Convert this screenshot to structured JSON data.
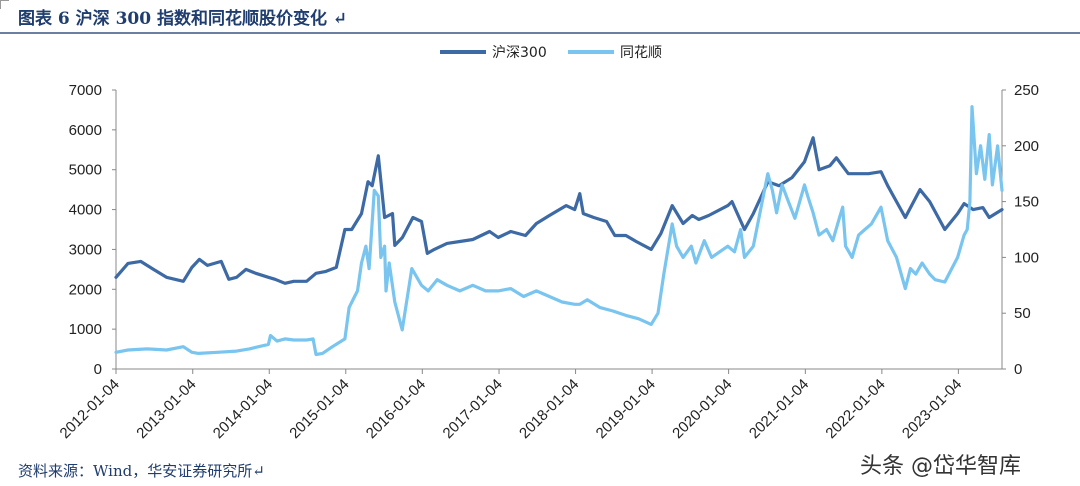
{
  "header": {
    "title": "图表 6 沪深 300 指数和同花顺股价变化 ↵"
  },
  "footer": {
    "source": "资料来源：Wind，华安证券研究所↵",
    "watermark": "头条 @岱华智库"
  },
  "chart_data": {
    "type": "line",
    "title": "图表 6 沪深 300 指数和同花顺股价变化",
    "legend_position": "top-center",
    "grid": false,
    "x_start": "2012-01-04",
    "x_end": "2023-07-31",
    "x_ticks": [
      "2012-01-04",
      "2013-01-04",
      "2014-01-04",
      "2015-01-04",
      "2016-01-04",
      "2017-01-04",
      "2018-01-04",
      "2019-01-04",
      "2020-01-04",
      "2021-01-04",
      "2022-01-04",
      "2023-01-04"
    ],
    "y_left": {
      "min": 0,
      "max": 7000,
      "ticks": [
        "0",
        "1000",
        "2000",
        "3000",
        "4000",
        "5000",
        "6000",
        "7000"
      ]
    },
    "y_right": {
      "min": 0,
      "max": 250,
      "ticks": [
        "0",
        "50",
        "100",
        "150",
        "200",
        "250"
      ]
    },
    "series": [
      {
        "name": "沪深300",
        "axis": "left",
        "color": "#3d6aa5",
        "points": [
          [
            "2012-01-04",
            2300
          ],
          [
            "2012-03-01",
            2650
          ],
          [
            "2012-05-01",
            2700
          ],
          [
            "2012-07-01",
            2500
          ],
          [
            "2012-09-01",
            2300
          ],
          [
            "2012-11-20",
            2200
          ],
          [
            "2012-12-31",
            2550
          ],
          [
            "2013-02-05",
            2750
          ],
          [
            "2013-03-15",
            2600
          ],
          [
            "2013-05-20",
            2700
          ],
          [
            "2013-06-25",
            2250
          ],
          [
            "2013-08-01",
            2300
          ],
          [
            "2013-09-15",
            2500
          ],
          [
            "2013-11-01",
            2400
          ],
          [
            "2013-12-31",
            2300
          ],
          [
            "2014-02-01",
            2250
          ],
          [
            "2014-03-20",
            2150
          ],
          [
            "2014-05-01",
            2200
          ],
          [
            "2014-07-01",
            2200
          ],
          [
            "2014-08-15",
            2400
          ],
          [
            "2014-10-01",
            2450
          ],
          [
            "2014-11-20",
            2550
          ],
          [
            "2014-12-31",
            3500
          ],
          [
            "2015-02-01",
            3500
          ],
          [
            "2015-03-20",
            3900
          ],
          [
            "2015-04-20",
            4700
          ],
          [
            "2015-05-10",
            4600
          ],
          [
            "2015-06-08",
            5350
          ],
          [
            "2015-07-08",
            3800
          ],
          [
            "2015-08-15",
            3900
          ],
          [
            "2015-08-26",
            3100
          ],
          [
            "2015-10-01",
            3300
          ],
          [
            "2015-11-20",
            3800
          ],
          [
            "2015-12-31",
            3700
          ],
          [
            "2016-01-28",
            2900
          ],
          [
            "2016-03-01",
            3000
          ],
          [
            "2016-05-01",
            3150
          ],
          [
            "2016-07-01",
            3200
          ],
          [
            "2016-09-01",
            3250
          ],
          [
            "2016-11-20",
            3450
          ],
          [
            "2016-12-31",
            3300
          ],
          [
            "2017-03-01",
            3450
          ],
          [
            "2017-05-10",
            3350
          ],
          [
            "2017-07-01",
            3650
          ],
          [
            "2017-09-01",
            3850
          ],
          [
            "2017-11-20",
            4100
          ],
          [
            "2017-12-31",
            4000
          ],
          [
            "2018-01-24",
            4400
          ],
          [
            "2018-02-10",
            3900
          ],
          [
            "2018-04-01",
            3800
          ],
          [
            "2018-06-01",
            3700
          ],
          [
            "2018-07-10",
            3350
          ],
          [
            "2018-09-01",
            3350
          ],
          [
            "2018-10-20",
            3200
          ],
          [
            "2018-12-31",
            3000
          ],
          [
            "2019-02-15",
            3400
          ],
          [
            "2019-04-10",
            4100
          ],
          [
            "2019-06-01",
            3650
          ],
          [
            "2019-07-15",
            3850
          ],
          [
            "2019-08-15",
            3750
          ],
          [
            "2019-10-01",
            3850
          ],
          [
            "2019-12-31",
            4100
          ],
          [
            "2020-01-20",
            4200
          ],
          [
            "2020-03-20",
            3500
          ],
          [
            "2020-05-01",
            3900
          ],
          [
            "2020-07-10",
            4700
          ],
          [
            "2020-09-01",
            4600
          ],
          [
            "2020-11-01",
            4800
          ],
          [
            "2020-12-31",
            5200
          ],
          [
            "2021-02-10",
            5800
          ],
          [
            "2021-03-10",
            5000
          ],
          [
            "2021-05-01",
            5100
          ],
          [
            "2021-06-01",
            5300
          ],
          [
            "2021-07-28",
            4900
          ],
          [
            "2021-09-01",
            4900
          ],
          [
            "2021-11-01",
            4900
          ],
          [
            "2021-12-31",
            4950
          ],
          [
            "2022-02-01",
            4600
          ],
          [
            "2022-03-15",
            4200
          ],
          [
            "2022-04-26",
            3800
          ],
          [
            "2022-07-05",
            4500
          ],
          [
            "2022-08-20",
            4200
          ],
          [
            "2022-10-31",
            3500
          ],
          [
            "2022-12-31",
            3900
          ],
          [
            "2023-01-31",
            4150
          ],
          [
            "2023-03-15",
            4000
          ],
          [
            "2023-05-01",
            4050
          ],
          [
            "2023-05-31",
            3800
          ],
          [
            "2023-07-31",
            4000
          ]
        ]
      },
      {
        "name": "同花顺",
        "axis": "right",
        "color": "#79c5ef",
        "points": [
          [
            "2012-01-04",
            15
          ],
          [
            "2012-03-01",
            17
          ],
          [
            "2012-06-01",
            18
          ],
          [
            "2012-09-01",
            17
          ],
          [
            "2012-11-20",
            20
          ],
          [
            "2012-12-31",
            15
          ],
          [
            "2013-02-01",
            14
          ],
          [
            "2013-05-01",
            15
          ],
          [
            "2013-08-01",
            16
          ],
          [
            "2013-10-01",
            18
          ],
          [
            "2013-12-31",
            22
          ],
          [
            "2014-01-10",
            30
          ],
          [
            "2014-02-10",
            25
          ],
          [
            "2014-03-20",
            27
          ],
          [
            "2014-05-01",
            26
          ],
          [
            "2014-07-01",
            26
          ],
          [
            "2014-08-01",
            27
          ],
          [
            "2014-08-15",
            13
          ],
          [
            "2014-09-15",
            14
          ],
          [
            "2014-11-01",
            20
          ],
          [
            "2014-12-31",
            27
          ],
          [
            "2015-01-20",
            55
          ],
          [
            "2015-02-15",
            65
          ],
          [
            "2015-03-01",
            70
          ],
          [
            "2015-03-20",
            95
          ],
          [
            "2015-04-10",
            110
          ],
          [
            "2015-04-25",
            90
          ],
          [
            "2015-05-20",
            160
          ],
          [
            "2015-06-08",
            155
          ],
          [
            "2015-06-20",
            100
          ],
          [
            "2015-07-08",
            110
          ],
          [
            "2015-07-15",
            70
          ],
          [
            "2015-07-30",
            95
          ],
          [
            "2015-08-26",
            60
          ],
          [
            "2015-09-30",
            35
          ],
          [
            "2015-11-15",
            90
          ],
          [
            "2015-12-31",
            75
          ],
          [
            "2016-02-01",
            70
          ],
          [
            "2016-03-15",
            80
          ],
          [
            "2016-05-01",
            75
          ],
          [
            "2016-07-01",
            70
          ],
          [
            "2016-09-01",
            75
          ],
          [
            "2016-11-01",
            70
          ],
          [
            "2016-12-31",
            70
          ],
          [
            "2017-03-01",
            72
          ],
          [
            "2017-05-01",
            65
          ],
          [
            "2017-07-01",
            70
          ],
          [
            "2017-09-01",
            65
          ],
          [
            "2017-11-01",
            60
          ],
          [
            "2017-12-31",
            58
          ],
          [
            "2018-01-24",
            58
          ],
          [
            "2018-03-01",
            62
          ],
          [
            "2018-05-01",
            55
          ],
          [
            "2018-07-01",
            52
          ],
          [
            "2018-09-01",
            48
          ],
          [
            "2018-11-01",
            45
          ],
          [
            "2018-12-31",
            40
          ],
          [
            "2019-02-01",
            50
          ],
          [
            "2019-03-01",
            85
          ],
          [
            "2019-04-10",
            130
          ],
          [
            "2019-05-01",
            110
          ],
          [
            "2019-06-01",
            100
          ],
          [
            "2019-07-10",
            110
          ],
          [
            "2019-08-01",
            95
          ],
          [
            "2019-09-10",
            115
          ],
          [
            "2019-10-15",
            100
          ],
          [
            "2019-12-31",
            110
          ],
          [
            "2020-02-01",
            105
          ],
          [
            "2020-03-01",
            125
          ],
          [
            "2020-03-20",
            100
          ],
          [
            "2020-05-01",
            110
          ],
          [
            "2020-07-09",
            175
          ],
          [
            "2020-07-31",
            160
          ],
          [
            "2020-08-20",
            140
          ],
          [
            "2020-09-15",
            165
          ],
          [
            "2020-10-15",
            150
          ],
          [
            "2020-11-15",
            135
          ],
          [
            "2020-12-31",
            165
          ],
          [
            "2021-01-15",
            155
          ],
          [
            "2021-02-10",
            140
          ],
          [
            "2021-03-10",
            120
          ],
          [
            "2021-04-15",
            125
          ],
          [
            "2021-05-15",
            115
          ],
          [
            "2021-06-15",
            135
          ],
          [
            "2021-07-01",
            145
          ],
          [
            "2021-07-15",
            110
          ],
          [
            "2021-08-15",
            100
          ],
          [
            "2021-09-15",
            120
          ],
          [
            "2021-10-15",
            125
          ],
          [
            "2021-11-15",
            130
          ],
          [
            "2021-12-31",
            145
          ],
          [
            "2022-02-01",
            115
          ],
          [
            "2022-03-15",
            100
          ],
          [
            "2022-04-26",
            72
          ],
          [
            "2022-05-20",
            90
          ],
          [
            "2022-06-15",
            85
          ],
          [
            "2022-07-15",
            95
          ],
          [
            "2022-08-20",
            85
          ],
          [
            "2022-09-15",
            80
          ],
          [
            "2022-10-31",
            78
          ],
          [
            "2022-12-31",
            100
          ],
          [
            "2023-01-31",
            120
          ],
          [
            "2023-02-15",
            125
          ],
          [
            "2023-02-28",
            150
          ],
          [
            "2023-03-10",
            235
          ],
          [
            "2023-03-31",
            175
          ],
          [
            "2023-04-20",
            200
          ],
          [
            "2023-05-10",
            170
          ],
          [
            "2023-05-31",
            210
          ],
          [
            "2023-06-15",
            165
          ],
          [
            "2023-07-10",
            200
          ],
          [
            "2023-07-31",
            160
          ]
        ]
      }
    ]
  }
}
